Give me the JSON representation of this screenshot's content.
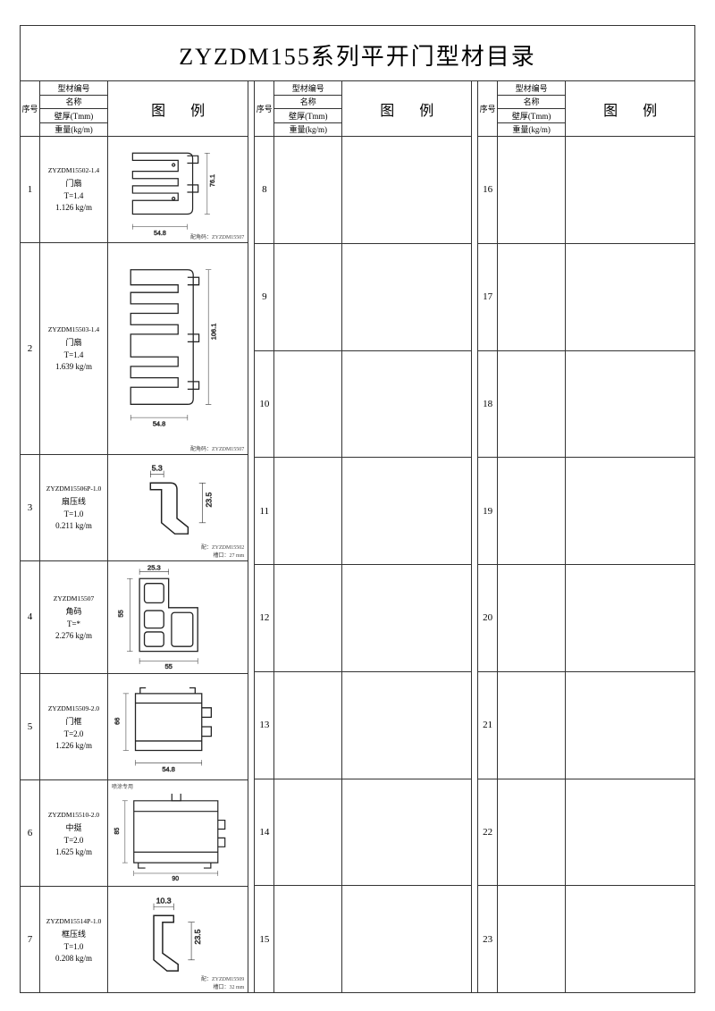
{
  "title": "ZYZDM155系列平开门型材目录",
  "header": {
    "seq": "序号",
    "code": "型材编号",
    "name": "名称",
    "thickness": "壁厚(Tmm)",
    "weight": "重量(kg/m)",
    "figure": "图例"
  },
  "groups": [
    {
      "rows": [
        {
          "seq": "1",
          "code": "ZYZDM15502-1.4",
          "name": "门扇",
          "thick": "T=1.4",
          "weight": "1.126 kg/m",
          "dims": {
            "w": "54.8",
            "h": "76.1"
          },
          "note_br": "配角码：ZYZDM15507",
          "svg": "p1"
        },
        {
          "seq": "2",
          "code": "ZYZDM15503-1.4",
          "name": "门扇",
          "thick": "T=1.4",
          "weight": "1.639 kg/m",
          "dims": {
            "w": "54.8",
            "h": "106.1"
          },
          "note_br": "配角码：ZYZDM15507",
          "svg": "p2",
          "tall": true
        },
        {
          "seq": "3",
          "code": "ZYZDM15506P-1.0",
          "name": "扇压线",
          "thick": "T=1.0",
          "weight": "0.211 kg/m",
          "dims": {
            "w": "5.3",
            "h": "23.5"
          },
          "note_br": "配：ZYZDM15502\n槽口：27 mm",
          "svg": "p3"
        },
        {
          "seq": "4",
          "code": "ZYZDM15507",
          "name": "角码",
          "thick": "T=*",
          "weight": "2.276 kg/m",
          "dims": {
            "w": "55",
            "h": "55",
            "w2": "25.3"
          },
          "svg": "p4"
        },
        {
          "seq": "5",
          "code": "ZYZDM15509-2.0",
          "name": "门框",
          "thick": "T=2.0",
          "weight": "1.226 kg/m",
          "dims": {
            "w": "54.8",
            "h": "66"
          },
          "svg": "p5"
        },
        {
          "seq": "6",
          "code": "ZYZDM15510-2.0",
          "name": "中挺",
          "thick": "T=2.0",
          "weight": "1.625 kg/m",
          "dims": {
            "w": "90",
            "h": "85"
          },
          "note_tl": "喷涂专用",
          "svg": "p6"
        },
        {
          "seq": "7",
          "code": "ZYZDM15514P-1.0",
          "name": "框压线",
          "thick": "T=1.0",
          "weight": "0.208 kg/m",
          "dims": {
            "w": "10.3",
            "h": "23.5"
          },
          "note_br": "配：ZYZDM15509\n槽口：32 mm",
          "svg": "p7"
        }
      ]
    },
    {
      "rows": [
        {
          "seq": "8"
        },
        {
          "seq": "9"
        },
        {
          "seq": "10"
        },
        {
          "seq": "11"
        },
        {
          "seq": "12"
        },
        {
          "seq": "13"
        },
        {
          "seq": "14"
        },
        {
          "seq": "15"
        }
      ]
    },
    {
      "rows": [
        {
          "seq": "16"
        },
        {
          "seq": "17"
        },
        {
          "seq": "18"
        },
        {
          "seq": "19"
        },
        {
          "seq": "20"
        },
        {
          "seq": "21"
        },
        {
          "seq": "22"
        },
        {
          "seq": "23"
        }
      ]
    }
  ],
  "styling": {
    "border_color": "#333333",
    "bg_color": "#ffffff",
    "title_fontsize": 26,
    "row_fontsize": 9,
    "dim_fontsize": 7,
    "stroke_profile": "#222222",
    "stroke_dim": "#333333",
    "stroke_width_profile": 1.0,
    "stroke_width_dim": 0.5
  }
}
